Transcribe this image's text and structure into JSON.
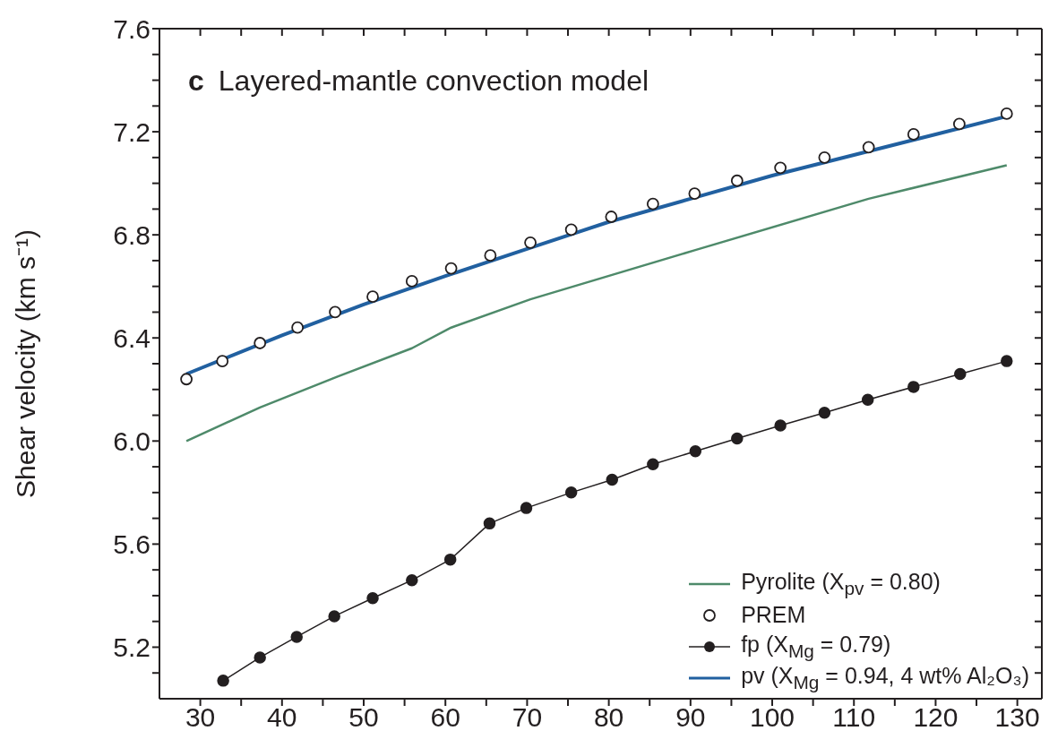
{
  "chart_data": {
    "type": "line",
    "title": "Layered-mantle convection model",
    "annotations": [
      "c"
    ],
    "ylabel": "Shear velocity (km s⁻¹)",
    "xlim": [
      25,
      133
    ],
    "xticks": [
      30,
      {
        "value": 35,
        "label": null
      },
      40,
      {
        "value": 45,
        "label": null
      },
      50,
      {
        "value": 55,
        "label": null
      },
      60,
      {
        "value": 65,
        "label": null
      },
      70,
      {
        "value": 75,
        "label": null
      },
      80,
      {
        "value": 85,
        "label": null
      },
      90,
      {
        "value": 95,
        "label": null
      },
      100,
      {
        "value": 105,
        "label": null
      },
      110,
      {
        "value": 115,
        "label": null
      },
      120,
      {
        "value": 125,
        "label": null
      },
      130
    ],
    "ylim": [
      5.0,
      7.6
    ],
    "yticks": [
      {
        "value": 5.1,
        "label": null
      },
      5.2,
      {
        "value": 5.3,
        "label": null
      },
      {
        "value": 5.4,
        "label": null
      },
      {
        "value": 5.5,
        "label": null
      },
      5.6,
      {
        "value": 5.7,
        "label": null
      },
      {
        "value": 5.8,
        "label": null
      },
      {
        "value": 5.9,
        "label": null
      },
      {
        "value": 6.0,
        "label": "6.0"
      },
      {
        "value": 6.1,
        "label": null
      },
      {
        "value": 6.2,
        "label": null
      },
      {
        "value": 6.3,
        "label": null
      },
      6.4,
      {
        "value": 6.5,
        "label": null
      },
      {
        "value": 6.6,
        "label": null
      },
      {
        "value": 6.7,
        "label": null
      },
      6.8,
      {
        "value": 6.9,
        "label": null
      },
      {
        "value": 7.0,
        "label": null
      },
      {
        "value": 7.1,
        "label": null
      },
      7.2,
      {
        "value": 7.3,
        "label": null
      },
      {
        "value": 7.4,
        "label": null
      },
      {
        "value": 7.5,
        "label": null
      },
      7.6
    ],
    "grid": false,
    "legend": "bottom right",
    "series": [
      {
        "name": "Pyrolite (X$_{pv}$ = 0.80)",
        "type": "line",
        "marker": "none",
        "color": "#4e8a6a",
        "x": [
          28.3,
          37.3,
          46.8,
          55.9,
          60.7,
          70.4,
          90.5,
          111.8,
          128.7
        ],
        "values": [
          6.0,
          6.13,
          6.25,
          6.36,
          6.44,
          6.55,
          6.74,
          6.94,
          7.07
        ]
      },
      {
        "name": "PREM",
        "type": "scatter",
        "marker": "circle",
        "color": "#231f20",
        "x": [
          28.3,
          32.7,
          37.3,
          41.9,
          46.5,
          51.1,
          55.9,
          60.7,
          65.5,
          70.4,
          75.4,
          80.3,
          85.4,
          90.5,
          95.7,
          101.0,
          106.4,
          111.8,
          117.3,
          122.9,
          128.7
        ],
        "values": [
          6.24,
          6.31,
          6.38,
          6.44,
          6.5,
          6.56,
          6.62,
          6.67,
          6.72,
          6.77,
          6.82,
          6.87,
          6.92,
          6.96,
          7.01,
          7.06,
          7.1,
          7.14,
          7.19,
          7.23,
          7.27
        ]
      },
      {
        "name": "fp (X$_{Mg}$ = 0.79)",
        "type": "line",
        "marker": "circle",
        "color": "#231f20",
        "x": [
          32.8,
          37.3,
          41.8,
          46.4,
          51.1,
          55.9,
          60.6,
          65.4,
          69.9,
          75.4,
          80.4,
          85.4,
          90.6,
          95.7,
          101.0,
          106.4,
          111.7,
          117.3,
          123.0,
          128.7
        ],
        "values": [
          5.07,
          5.16,
          5.24,
          5.32,
          5.39,
          5.46,
          5.54,
          5.68,
          5.74,
          5.8,
          5.85,
          5.91,
          5.96,
          6.01,
          6.06,
          6.11,
          6.16,
          6.21,
          6.26,
          6.31
        ]
      },
      {
        "name": "pv (X$_{Mg}$ = 0.94, 4 wt% Al₂O₃)",
        "type": "line",
        "marker": "none",
        "color": "#2160a0",
        "x": [
          28.3,
          40,
          50,
          60,
          70.4,
          80,
          90,
          100,
          110,
          120,
          128.7
        ],
        "values": [
          6.26,
          6.41,
          6.53,
          6.64,
          6.75,
          6.85,
          6.94,
          7.03,
          7.11,
          7.19,
          7.26
        ]
      }
    ]
  }
}
